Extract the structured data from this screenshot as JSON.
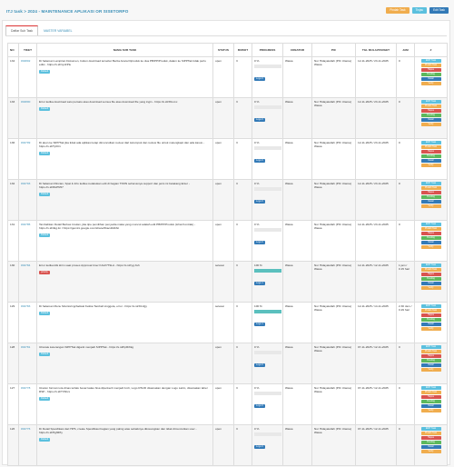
{
  "header": {
    "title": "ITJ task > 2024 - MAINTENANCE APLIKASI OR SISETORPO",
    "buttons": [
      {
        "label": "Pindah Task",
        "color": "#f0ad4e"
      },
      {
        "label": "Tinjau",
        "color": "#5bc0de"
      },
      {
        "label": "Edit Task",
        "color": "#337ab7"
      }
    ]
  },
  "tabs": [
    {
      "label": "Daftar Sub Task"
    },
    {
      "label": "MASTER VARIABEL"
    }
  ],
  "table": {
    "columns": [
      "NO",
      "TIKET",
      "NAMA SUB TASK",
      "STATUS",
      "BOBOT",
      "PROGRESS",
      "CREATOR",
      "PIC",
      "TGL MULAI/TARGET",
      "JAM",
      "#"
    ],
    "actions": [
      {
        "label": "EDIT Task",
        "color": "#5bc0de"
      },
      {
        "label": "Pindah Task",
        "color": "#f0ad4e"
      },
      {
        "label": "Hapus",
        "color": "#d9534f"
      },
      {
        "label": "Pending",
        "color": "#5cb85c"
      },
      {
        "label": "Detail",
        "color": "#337ab7"
      },
      {
        "label": "Verify",
        "color": "#f0ad4e"
      }
    ],
    "rows": [
      {
        "no": "134",
        "ticket": "#02802",
        "name": "Di halaman Lampiran Dokumen, button download tersebut Berita Acara Diproduk ke dua PB/PP/Produk, dalam ke SIPPTak tidak perlu edisi - https://s.id/1ysFPiu",
        "tag": "Default",
        "tag_red": false,
        "status": "open",
        "bobot": "3",
        "progress": "0 %",
        "progress_value": 0,
        "log": "Logs 0",
        "creator": "Wawa",
        "pic": "Nur Hidayatullah (PIC Utama) Wawa",
        "date": "12-11-2025 / 23-11-2025",
        "jam": "0"
      },
      {
        "no": "133",
        "ticket": "#02800",
        "name": "Error ketika download satu persatu atau download semua file atau download file yang ingin - https://s.id/3KLcxx",
        "tag": "Default",
        "tag_red": false,
        "status": "open",
        "bobot": "3",
        "progress": "0 %",
        "progress_value": 0,
        "log": "Logs 0",
        "creator": "Wawa",
        "pic": "Nur Hidayatullah (PIC Utama) Wawa",
        "date": "12-11-2025 / 23-11-2025",
        "jam": "0"
      },
      {
        "no": "136",
        "ticket": "#02799",
        "name": "Di akun ke SIPPTak jika tidak ada aplikasi tetap dimunculkan review dari kelompok dan review file untuk melengkapi dan ada kasus - https://s.id/Ty6C1",
        "tag": "Default",
        "tag_red": false,
        "status": "open",
        "bobot": "3",
        "progress": "0 %",
        "progress_value": 0,
        "log": "Logs 0",
        "creator": "Wawa",
        "pic": "Nur Hidayatullah (PIC Utama) Wawa",
        "date": "12-11-2025 / 23-11-2025",
        "jam": "0"
      },
      {
        "no": "132",
        "ticket": "#02793",
        "name": "Di halaman Rincian, Spat & Info ketika melakukan edit di bagian TKDN seharusnya support dan jenis ini belakang Enter - https://s.id/8GPN57",
        "tag": "Default",
        "tag_red": false,
        "status": "open",
        "bobot": "3",
        "progress": "0 %",
        "progress_value": 0,
        "log": "Logs 0",
        "creator": "Wawa",
        "pic": "Nur Hidayatullah (PIC Utama) Wawa",
        "date": "12-11-2025 / 23-11-2025",
        "jam": "0"
      },
      {
        "no": "131",
        "ticket": "#02785",
        "name": "Tambahkan Detail Berkas Usulan, jika tipe pemilihan penyedia maka yang muncul adalah edit PB/PP/Produk (Lihat Kontrak) - https://s.id/4kg.itn / https://gemini.google.com/share/0bacd44b6c",
        "tag": "Default",
        "tag_red": false,
        "status": "open",
        "bobot": "3",
        "progress": "0 %",
        "progress_value": 0,
        "log": "Logs 0",
        "creator": "Wawa",
        "pic": "Nur Hidayatullah (PIC Utama) Wawa",
        "date": "12-11-2025 / 23-11-2025",
        "jam": "0"
      },
      {
        "no": "130",
        "ticket": "#02784",
        "name": "Error ketika klik kirim saat proses Approval User KALP/TSLA - https://s.id/ryg.bvh",
        "tag": "priority",
        "tag_red": true,
        "status": "selesai",
        "bobot": "3",
        "progress": "100 %",
        "progress_value": 100,
        "log": "Logs 1",
        "creator": "Wawa",
        "pic": "Nur Hidayatullah (PIC Utama) Wawa",
        "date": "12-11-2025 / 12-11-2025",
        "jam": "1 jam / 0.15 hari"
      },
      {
        "no": "129",
        "ticket": "#02783",
        "name": "Di halaman Menu Monitoring/Jadwal Ketika Tambah Anggota, error - https://s.id/JUsfgy",
        "tag": "Default",
        "tag_red": false,
        "status": "selesai",
        "bobot": "3",
        "progress": "100 %",
        "progress_value": 100,
        "log": "Logs 1",
        "creator": "Wawa",
        "pic": "Nur Hidayatullah (PIC Utama) Wawa",
        "date": "12-11-2025 / 14-11-2025",
        "jam": "2.30 Jam / 0.29 hari"
      },
      {
        "no": "128",
        "ticket": "#02781",
        "name": "Ubscale keterangan SIPPTak diganti menjadi SIPPTak - https://s.id/FpRifrkg",
        "tag": "Default",
        "tag_red": false,
        "status": "open",
        "bobot": "3",
        "progress": "0 %",
        "progress_value": 0,
        "log": "Logs 0",
        "creator": "Wawa",
        "pic": "Nur Hidayatullah (PIC Utama) Wawa",
        "date": "07-11-2025 / 12-11-2025",
        "jam": "0"
      },
      {
        "no": "127",
        "ticket": "#02778",
        "name": "Ukuran format nota dinas terlalu besar kalau bisa diperkecil menjadi 1mb, Logo RSUD disamakan dengan Logo Latim, disamakan label RSP - https://s.id/TXNIvx",
        "tag": "Default",
        "tag_red": false,
        "status": "open",
        "bobot": "3",
        "progress": "0 %",
        "progress_value": 0,
        "log": "Logs 0",
        "creator": "Wawa",
        "pic": "Nur Hidayatullah (PIC Utama) Wawa",
        "date": "07-11-2025 / 12-11-2025",
        "jam": "0"
      },
      {
        "no": "126",
        "ticket": "#02776",
        "name": "Di Detail Spesifikasi dari HPS, create Spesifikasi bagian yang paling atas sebaiknya dikosongkan dan tidak dimunculkan user - https://s.id/Hgf9Pty",
        "tag": "Default",
        "tag_red": false,
        "status": "open",
        "bobot": "3",
        "progress": "0 %",
        "progress_value": 0,
        "log": "Logs 0",
        "creator": "Wawa",
        "pic": "Nur Hidayatullah (PIC Utama) Wawa",
        "date": "07-11-2025 / 12-11-2025",
        "jam": "0"
      }
    ]
  }
}
